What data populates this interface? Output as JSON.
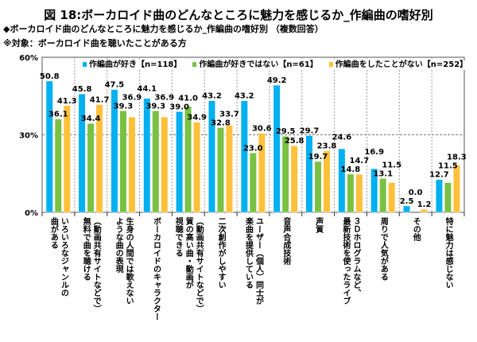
{
  "title": "図 18:ボーカロイド曲のどんなところに魅力を感じるか_作編曲の嗜好別",
  "subtitle": "◆ボーカロイド曲のどんなところに魅力を感じるか_作編曲の嗜好別 （複数回答）",
  "target_note": "※対象：ボーカロイド曲を聴いたことがある方",
  "chart_data": {
    "type": "bar",
    "ylim": [
      0,
      60
    ],
    "yticks": [
      "0%",
      "30%",
      "60%"
    ],
    "grid": true,
    "legend_position": "top",
    "categories": [
      "いろいろなジャンルの\n曲がある",
      "（動画共有サイトなどで）\n無料で曲を聴ける",
      "生身の人間では歌えない\nような曲の表現",
      "ボーカロイドのキャラクター",
      "（動画共有サイトなどで）\n質の高い曲・動画が\n視聴できる",
      "二次創作がしやすい",
      "ユーザー（個人）同士が\n楽曲を提供している",
      "音声合成技術",
      "声質",
      "３Ｄホログラムなど、\n最新技術を使ったライブ",
      "周りで人気がある",
      "その他",
      "特に魅力は感じない"
    ],
    "series": [
      {
        "name": "作編曲が好き【n=118】",
        "color": "#00b0f0",
        "values": [
          50.8,
          45.8,
          47.5,
          44.1,
          39.0,
          43.2,
          43.2,
          49.2,
          29.7,
          24.6,
          16.9,
          2.5,
          12.7
        ]
      },
      {
        "name": "作編曲が好きではない【n=61】",
        "color": "#7ac143",
        "values": [
          36.1,
          34.4,
          39.3,
          39.3,
          41.0,
          32.8,
          23.0,
          29.5,
          19.7,
          14.8,
          13.1,
          0.0,
          11.5
        ]
      },
      {
        "name": "作編曲をしたことがない【n=252】",
        "color": "#ffc13b",
        "values": [
          41.3,
          41.7,
          36.9,
          36.9,
          34.9,
          33.7,
          30.6,
          25.8,
          23.8,
          14.7,
          11.5,
          1.2,
          18.3
        ]
      }
    ]
  }
}
